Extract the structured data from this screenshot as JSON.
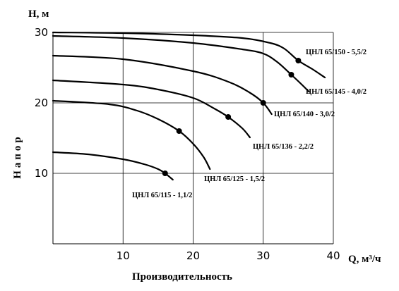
{
  "chart_data": {
    "type": "line",
    "title": "",
    "xlabel": "Производительность",
    "ylabel": "Напор",
    "x_unit_label": "Q, м³/ч",
    "y_unit_label": "H, м",
    "xlim": [
      0,
      40
    ],
    "ylim": [
      0,
      30
    ],
    "x_ticks": [
      "10",
      "20",
      "30",
      "40"
    ],
    "y_ticks": [
      "10",
      "20",
      "30"
    ],
    "grid": true,
    "colors": {
      "line": "#000000",
      "grid": "#000000",
      "background": "#ffffff"
    },
    "series": [
      {
        "name": "ЦНЛ 65/150 - 5,5/2",
        "x": [
          0,
          10,
          20,
          27,
          31,
          33,
          35,
          37,
          38.8
        ],
        "y": [
          30,
          29.9,
          29.6,
          29.2,
          28.5,
          27.7,
          26,
          24.8,
          23.6
        ],
        "marker": [
          35,
          26
        ]
      },
      {
        "name": "ЦНЛ 65/145 - 4,0/2",
        "x": [
          0,
          10,
          20,
          27,
          30,
          32,
          34,
          35.5,
          36.5
        ],
        "y": [
          29.5,
          29.2,
          28.5,
          27.6,
          27,
          25.8,
          24,
          22.6,
          21.6
        ],
        "marker": [
          34,
          24
        ]
      },
      {
        "name": "ЦНЛ 65/140 - 3,0/2",
        "x": [
          0,
          10,
          20,
          25,
          28,
          30,
          31.2
        ],
        "y": [
          26.7,
          26.2,
          24.5,
          23,
          21.5,
          20,
          18.4
        ],
        "marker": [
          30,
          20
        ]
      },
      {
        "name": "ЦНЛ 65/136 - 2,2/2",
        "x": [
          0,
          10,
          15,
          20,
          23,
          25,
          27,
          28.1
        ],
        "y": [
          23.2,
          22.6,
          21.9,
          20.7,
          19.2,
          18,
          16.4,
          15.1
        ],
        "marker": [
          25,
          18
        ]
      },
      {
        "name": "ЦНЛ 65/125 - 1,5/2",
        "x": [
          0,
          8,
          12,
          15,
          18,
          20,
          21.5,
          22.4
        ],
        "y": [
          20.3,
          19.8,
          18.9,
          17.7,
          16,
          14.2,
          12.3,
          10.6
        ],
        "marker": [
          18,
          16
        ]
      },
      {
        "name": "ЦНЛ 65/115 - 1,1/2",
        "x": [
          0,
          5,
          10,
          13,
          15,
          16,
          17.1
        ],
        "y": [
          13,
          12.7,
          12,
          11.3,
          10.6,
          10,
          9.1
        ],
        "marker": [
          16,
          10
        ]
      }
    ]
  }
}
